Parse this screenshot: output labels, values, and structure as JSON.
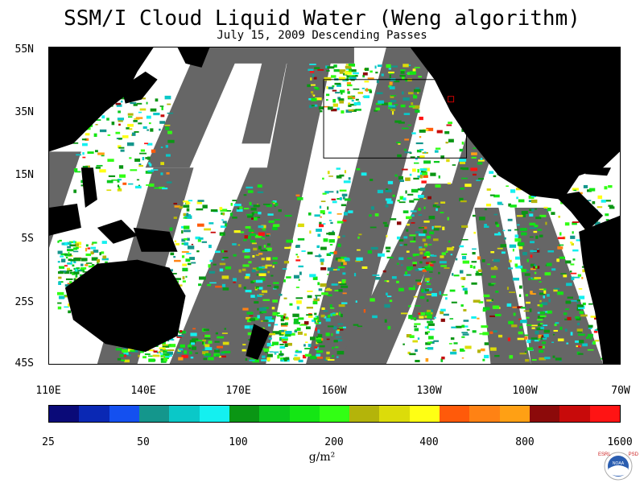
{
  "header": {
    "title": "SSM/I Cloud Liquid Water (Weng algorithm)",
    "subtitle": "July 15, 2009  Descending Passes"
  },
  "map": {
    "lat_labels": [
      "55N",
      "35N",
      "15N",
      "5S",
      "25S",
      "45S"
    ],
    "lon_labels": [
      "110E",
      "140E",
      "170E",
      "160W",
      "130W",
      "100W",
      "70W"
    ],
    "colors": {
      "land": "#000000",
      "no_data_swath_gap": "#666666",
      "ocean_clear": "#ffffff",
      "box": "#000000",
      "marker": "#cc0000"
    }
  },
  "colorbar": {
    "colors": [
      "#0a0a78",
      "#0a28b4",
      "#1450f0",
      "#14968c",
      "#0ac8c8",
      "#14f0f0",
      "#0a9614",
      "#0ac81e",
      "#14e614",
      "#32ff14",
      "#b4b40a",
      "#dcdc0a",
      "#ffff14",
      "#ff5a0a",
      "#ff8214",
      "#ffa014",
      "#8c0a0a",
      "#c80a0a",
      "#ff1414"
    ],
    "tick_labels": [
      "25",
      "50",
      "100",
      "200",
      "400",
      "800",
      "1600"
    ],
    "units": "g/m²"
  },
  "logo": {
    "left_letters": "ESRL",
    "right_letters": "PSD",
    "badge": "NOAA"
  }
}
